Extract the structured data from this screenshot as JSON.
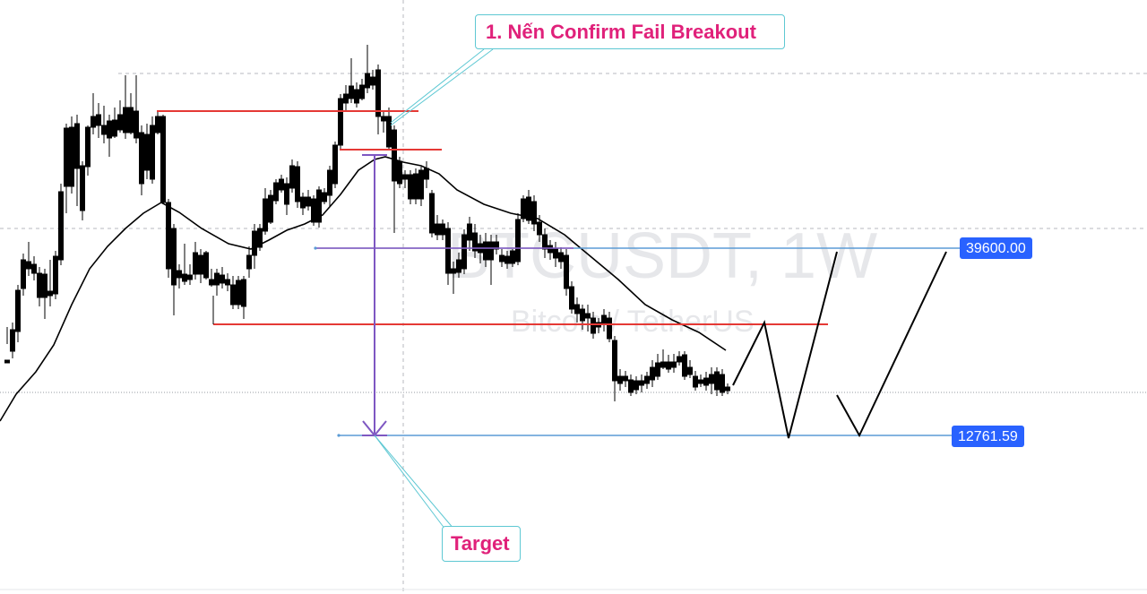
{
  "chart_data": {
    "type": "candlestick",
    "symbol_watermark": "BTCUSDT, 1W",
    "subtitle_watermark": "Bitcoin / TetherUS",
    "annotations": [
      {
        "text": "1. Nến Confirm Fail Breakout",
        "color": "#e0217a"
      },
      {
        "text": "Target",
        "color": "#e0217a"
      }
    ],
    "price_labels": [
      "39600.00",
      "12761.59"
    ],
    "candles": [
      {
        "o": 1,
        "h": 1,
        "l": 1,
        "c": 1,
        "dir": "up"
      }
    ],
    "colors": {
      "up": "#ffffff",
      "down": "#000000",
      "wick": "#000000",
      "ma": "#000000",
      "resistance": "#e53935",
      "level": "#5b9bd5",
      "projection": "#7e57c2",
      "label_bg": "#2962ff",
      "callout_border": "#5ec8d3"
    }
  }
}
